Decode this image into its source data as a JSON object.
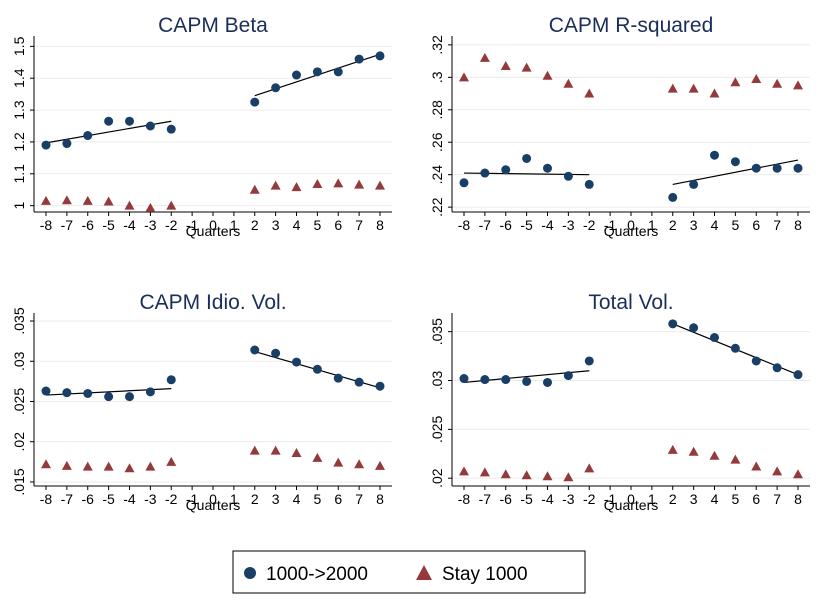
{
  "colors": {
    "circle_series": "#1a3f66",
    "triangle_series": "#943a3d",
    "fit_line": "#000000",
    "gridline": "#ebebeb",
    "title_text": "#1a2e5a"
  },
  "legend": {
    "items": [
      {
        "label": "1000->2000",
        "marker": "circle"
      },
      {
        "label": "Stay 1000",
        "marker": "triangle"
      }
    ]
  },
  "chart_data": [
    {
      "type": "scatter",
      "title": "CAPM Beta",
      "xlabel": "Quarters",
      "ylabel": "",
      "x_ticks": [
        "-8",
        "-7",
        "-6",
        "-5",
        "-4",
        "-3",
        "-2",
        "-1",
        "0",
        "1",
        "2",
        "3",
        "4",
        "5",
        "6",
        "7",
        "8"
      ],
      "y_ticks": [
        "1",
        "1.1",
        "1.2",
        "1.3",
        "1.4",
        "1.5"
      ],
      "ylim": [
        0.98,
        1.52
      ],
      "grid": true,
      "series": [
        {
          "name": "1000->2000",
          "marker": "circle",
          "x": [
            -8,
            -7,
            -6,
            -5,
            -4,
            -3,
            -2,
            2,
            3,
            4,
            5,
            6,
            7,
            8
          ],
          "y": [
            1.19,
            1.195,
            1.22,
            1.265,
            1.265,
            1.25,
            1.24,
            1.325,
            1.37,
            1.41,
            1.42,
            1.42,
            1.46,
            1.47
          ]
        },
        {
          "name": "Stay 1000",
          "marker": "triangle",
          "x": [
            -8,
            -7,
            -6,
            -5,
            -4,
            -3,
            -2,
            2,
            3,
            4,
            5,
            6,
            7,
            8
          ],
          "y": [
            1.015,
            1.017,
            1.015,
            1.013,
            1.0,
            0.993,
            1.0,
            1.05,
            1.063,
            1.058,
            1.068,
            1.07,
            1.066,
            1.063
          ]
        }
      ],
      "fit_lines": [
        {
          "x": [
            -8,
            -2
          ],
          "y": [
            1.197,
            1.265
          ]
        },
        {
          "x": [
            2,
            8
          ],
          "y": [
            1.345,
            1.475
          ]
        }
      ]
    },
    {
      "type": "scatter",
      "title": "CAPM R-squared",
      "xlabel": "Quarters",
      "ylabel": "",
      "x_ticks": [
        "-8",
        "-7",
        "-6",
        "-5",
        "-4",
        "-3",
        "-2",
        "-1",
        "0",
        "1",
        "2",
        "3",
        "4",
        "5",
        "6",
        "7",
        "8"
      ],
      "y_ticks": [
        ".22",
        ".24",
        ".26",
        ".28",
        ".3",
        ".32"
      ],
      "ylim": [
        0.217,
        0.323
      ],
      "grid": true,
      "series": [
        {
          "name": "1000->2000",
          "marker": "circle",
          "x": [
            -8,
            -7,
            -6,
            -5,
            -4,
            -3,
            -2,
            2,
            3,
            4,
            5,
            6,
            7,
            8
          ],
          "y": [
            0.235,
            0.241,
            0.243,
            0.25,
            0.244,
            0.239,
            0.234,
            0.226,
            0.234,
            0.252,
            0.248,
            0.244,
            0.244,
            0.244
          ]
        },
        {
          "name": "Stay 1000",
          "marker": "triangle",
          "x": [
            -8,
            -7,
            -6,
            -5,
            -4,
            -3,
            -2,
            2,
            3,
            4,
            5,
            6,
            7,
            8
          ],
          "y": [
            0.3,
            0.312,
            0.307,
            0.306,
            0.301,
            0.296,
            0.29,
            0.293,
            0.293,
            0.29,
            0.297,
            0.299,
            0.296,
            0.295
          ]
        }
      ],
      "fit_lines": [
        {
          "x": [
            -8,
            -2
          ],
          "y": [
            0.241,
            0.24
          ]
        },
        {
          "x": [
            2,
            8
          ],
          "y": [
            0.234,
            0.249
          ]
        }
      ]
    },
    {
      "type": "scatter",
      "title": "CAPM Idio. Vol.",
      "xlabel": "Quarters",
      "ylabel": "",
      "x_ticks": [
        "-8",
        "-7",
        "-6",
        "-5",
        "-4",
        "-3",
        "-2",
        "-1",
        "0",
        "1",
        "2",
        "3",
        "4",
        "5",
        "6",
        "7",
        "8"
      ],
      "y_ticks": [
        ".015",
        ".02",
        ".025",
        ".03",
        ".035"
      ],
      "ylim": [
        0.0145,
        0.0355
      ],
      "grid": true,
      "series": [
        {
          "name": "1000->2000",
          "marker": "circle",
          "x": [
            -8,
            -7,
            -6,
            -5,
            -4,
            -3,
            -2,
            2,
            3,
            4,
            5,
            6,
            7,
            8
          ],
          "y": [
            0.0263,
            0.0261,
            0.026,
            0.0256,
            0.0256,
            0.0262,
            0.0277,
            0.0314,
            0.031,
            0.0299,
            0.029,
            0.0279,
            0.0274,
            0.0269
          ]
        },
        {
          "name": "Stay 1000",
          "marker": "triangle",
          "x": [
            -8,
            -7,
            -6,
            -5,
            -4,
            -3,
            -2,
            2,
            3,
            4,
            5,
            6,
            7,
            8
          ],
          "y": [
            0.0172,
            0.017,
            0.0169,
            0.0169,
            0.0167,
            0.0169,
            0.0175,
            0.0189,
            0.0189,
            0.0186,
            0.018,
            0.0174,
            0.0172,
            0.017
          ]
        }
      ],
      "fit_lines": [
        {
          "x": [
            -8,
            -2
          ],
          "y": [
            0.0258,
            0.0266
          ]
        },
        {
          "x": [
            2,
            8
          ],
          "y": [
            0.0312,
            0.0267
          ]
        }
      ]
    },
    {
      "type": "scatter",
      "title": "Total Vol.",
      "xlabel": "Quarters",
      "ylabel": "",
      "x_ticks": [
        "-8",
        "-7",
        "-6",
        "-5",
        "-4",
        "-3",
        "-2",
        "-1",
        "0",
        "1",
        "2",
        "3",
        "4",
        "5",
        "6",
        "7",
        "8"
      ],
      "y_ticks": [
        ".02",
        ".025",
        ".03",
        ".035"
      ],
      "ylim": [
        0.0192,
        0.0365
      ],
      "grid": true,
      "series": [
        {
          "name": "1000->2000",
          "marker": "circle",
          "x": [
            -8,
            -7,
            -6,
            -5,
            -4,
            -3,
            -2,
            2,
            3,
            4,
            5,
            6,
            7,
            8
          ],
          "y": [
            0.0302,
            0.0301,
            0.0301,
            0.0299,
            0.0298,
            0.0305,
            0.032,
            0.0358,
            0.0354,
            0.0344,
            0.0333,
            0.032,
            0.0313,
            0.0306
          ]
        },
        {
          "name": "Stay 1000",
          "marker": "triangle",
          "x": [
            -8,
            -7,
            -6,
            -5,
            -4,
            -3,
            -2,
            2,
            3,
            4,
            5,
            6,
            7,
            8
          ],
          "y": [
            0.0207,
            0.0206,
            0.0204,
            0.0203,
            0.0202,
            0.0201,
            0.021,
            0.0229,
            0.0227,
            0.0223,
            0.0219,
            0.0212,
            0.0207,
            0.0204
          ]
        }
      ],
      "fit_lines": [
        {
          "x": [
            -8,
            -2
          ],
          "y": [
            0.0298,
            0.031
          ]
        },
        {
          "x": [
            2,
            8
          ],
          "y": [
            0.0358,
            0.0306
          ]
        }
      ]
    }
  ]
}
